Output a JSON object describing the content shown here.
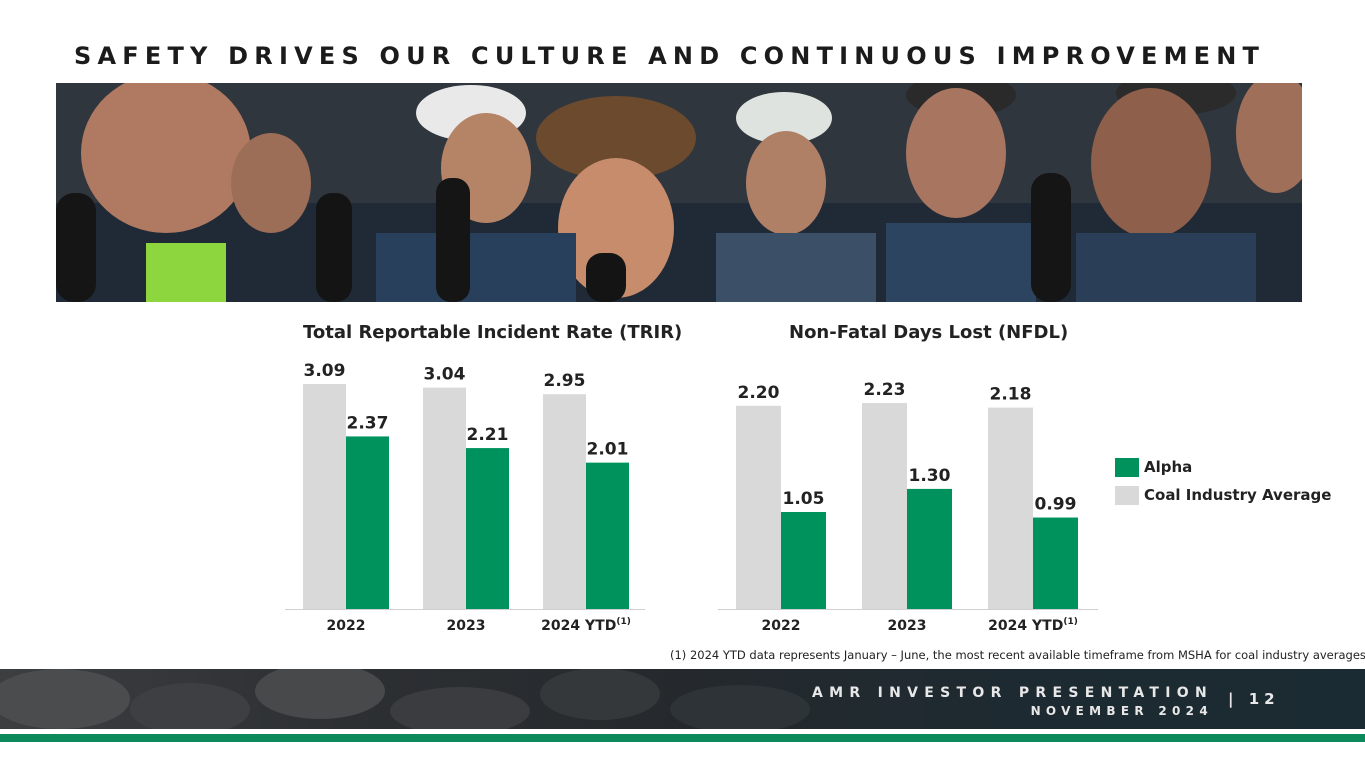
{
  "page": {
    "title": "SAFETY DRIVES OUR CULTURE AND CONTINUOUS IMPROVEMENT",
    "footnote": "(1) 2024 YTD data represents January – June, the most recent available timeframe from MSHA for coal industry averages.",
    "footer": {
      "line1": "AMR INVESTOR PRESENTATION",
      "line2": "NOVEMBER 2024",
      "separator": "|",
      "page_number": "12"
    }
  },
  "colors": {
    "alpha": "#00925c",
    "industry": "#d9d9d9",
    "accent_stripe": "#0d8a5b"
  },
  "legend": {
    "items": [
      {
        "label": "Alpha",
        "color": "#00925c"
      },
      {
        "label": "Coal Industry Average",
        "color": "#d9d9d9"
      }
    ],
    "placement": "right"
  },
  "chart_data": [
    {
      "type": "bar",
      "title": "Total Reportable Incident Rate (TRIR)",
      "categories": [
        "2022",
        "2023",
        "2024 YTD"
      ],
      "category_superscripts": [
        "",
        "",
        "(1)"
      ],
      "series": [
        {
          "name": "Coal Industry Average",
          "values": [
            3.09,
            3.04,
            2.95
          ],
          "labels": [
            "3.09",
            "3.04",
            "2.95"
          ]
        },
        {
          "name": "Alpha",
          "values": [
            2.37,
            2.21,
            2.01
          ],
          "labels": [
            "2.37",
            "2.21",
            "2.01"
          ]
        }
      ],
      "ylim": [
        0,
        3.09
      ],
      "grid": false
    },
    {
      "type": "bar",
      "title": "Non-Fatal Days Lost (NFDL)",
      "categories": [
        "2022",
        "2023",
        "2024 YTD"
      ],
      "category_superscripts": [
        "",
        "",
        "(1)"
      ],
      "series": [
        {
          "name": "Coal Industry Average",
          "values": [
            2.2,
            2.23,
            2.18
          ],
          "labels": [
            "2.20",
            "2.23",
            "2.18"
          ]
        },
        {
          "name": "Alpha",
          "values": [
            1.05,
            1.3,
            0.99
          ],
          "labels": [
            "1.05",
            "1.30",
            "0.99"
          ]
        }
      ],
      "ylim": [
        0,
        2.23
      ],
      "grid": false
    }
  ]
}
